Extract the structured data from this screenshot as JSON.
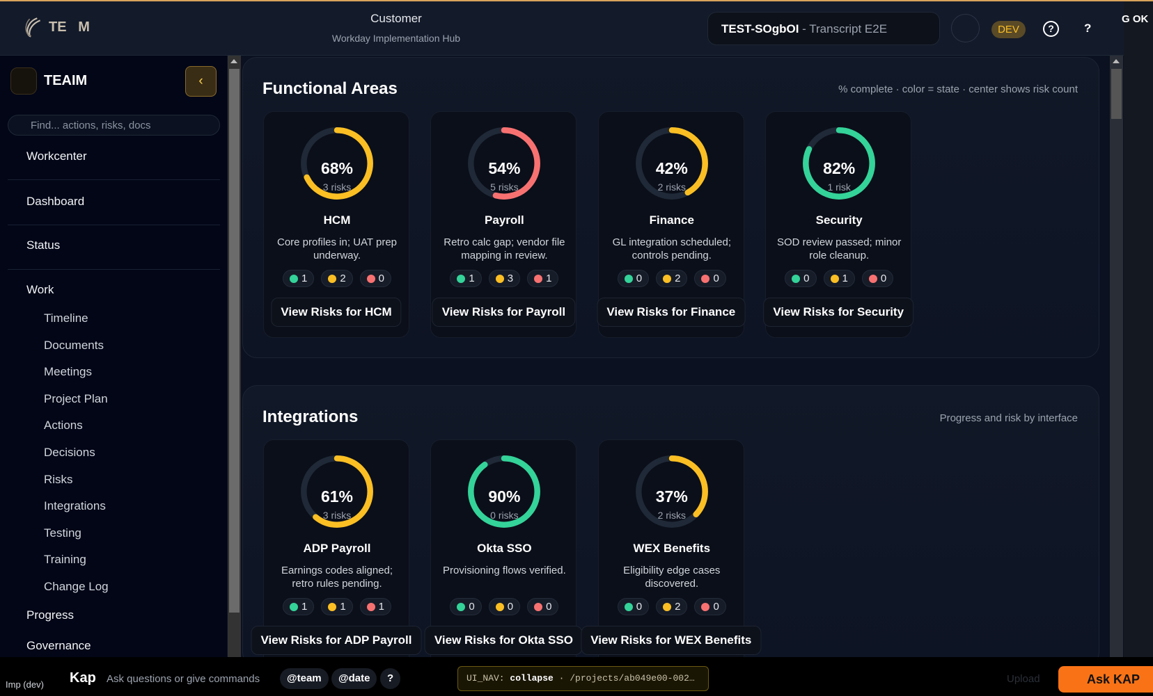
{
  "header": {
    "logo_text": "TE   M",
    "title": "Customer",
    "subtitle": "Workday Implementation Hub",
    "project_id": "TEST-SOgbOI",
    "project_sep": " - ",
    "project_name": "Transcript E2E",
    "env_badge": "DEV",
    "help_label": "?",
    "status_text": "G OK"
  },
  "sidebar": {
    "title": "TEAIM",
    "collapse_icon": "chevron-left-icon",
    "search_placeholder": "Find... actions, risks, docs",
    "top_items": [
      {
        "label": "Workcenter"
      },
      {
        "label": "Dashboard"
      },
      {
        "label": "Status"
      }
    ],
    "work_label": "Work",
    "work_items": [
      {
        "label": "Timeline"
      },
      {
        "label": "Documents"
      },
      {
        "label": "Meetings"
      },
      {
        "label": "Project Plan"
      },
      {
        "label": "Actions"
      },
      {
        "label": "Decisions"
      },
      {
        "label": "Risks"
      },
      {
        "label": "Integrations"
      },
      {
        "label": "Testing"
      },
      {
        "label": "Training"
      },
      {
        "label": "Change Log"
      }
    ],
    "bottom_items": [
      {
        "label": "Progress"
      },
      {
        "label": "Governance"
      }
    ]
  },
  "colors": {
    "green": "#34d399",
    "yellow": "#fbbf24",
    "red": "#f87171",
    "track": "#1f2937",
    "accent": "#f97316"
  },
  "functional": {
    "title": "Functional Areas",
    "hint": "% complete · color = state · center shows risk count",
    "cards": [
      {
        "pct": 68,
        "pct_label": "68%",
        "risks": "3 risks",
        "state": "yellow",
        "name": "HCM",
        "desc": "Core profiles in; UAT prep underway.",
        "green": "1",
        "yellow": "2",
        "red": "0",
        "button": "View Risks for HCM"
      },
      {
        "pct": 54,
        "pct_label": "54%",
        "risks": "5 risks",
        "state": "red",
        "name": "Payroll",
        "desc": "Retro calc gap; vendor file mapping in review.",
        "green": "1",
        "yellow": "3",
        "red": "1",
        "button": "View Risks for Payroll"
      },
      {
        "pct": 42,
        "pct_label": "42%",
        "risks": "2 risks",
        "state": "yellow",
        "name": "Finance",
        "desc": "GL integration scheduled; controls pending.",
        "green": "0",
        "yellow": "2",
        "red": "0",
        "button": "View Risks for Finance"
      },
      {
        "pct": 82,
        "pct_label": "82%",
        "risks": "1 risk",
        "state": "green",
        "name": "Security",
        "desc": "SOD review passed; minor role cleanup.",
        "green": "0",
        "yellow": "1",
        "red": "0",
        "button": "View Risks for Security"
      }
    ]
  },
  "integrations": {
    "title": "Integrations",
    "hint": "Progress and risk by interface",
    "cards": [
      {
        "pct": 61,
        "pct_label": "61%",
        "risks": "3 risks",
        "state": "yellow",
        "name": "ADP Payroll",
        "desc": "Earnings codes aligned; retro rules pending.",
        "green": "1",
        "yellow": "1",
        "red": "1",
        "button": "View Risks for ADP Payroll"
      },
      {
        "pct": 90,
        "pct_label": "90%",
        "risks": "0 risks",
        "state": "green",
        "name": "Okta SSO",
        "desc": "Provisioning flows verified.",
        "green": "0",
        "yellow": "0",
        "red": "0",
        "button": "View Risks for Okta SSO"
      },
      {
        "pct": 37,
        "pct_label": "37%",
        "risks": "2 risks",
        "state": "yellow",
        "name": "WEX Benefits",
        "desc": "Eligibility edge cases discovered.",
        "green": "0",
        "yellow": "2",
        "red": "0",
        "button": "View Risks for WEX Benefits"
      }
    ]
  },
  "bottom": {
    "env": "Imp (dev)",
    "assistant": "Kap",
    "placeholder": "Ask questions or give commands",
    "chips": [
      "@team",
      "@date",
      "?"
    ],
    "nav_prefix": "UI_NAV:",
    "nav_action": "collapse",
    "nav_path": "·  /projects/ab049e00-002…",
    "upload": "Upload",
    "ask_button": "Ask KAP"
  }
}
